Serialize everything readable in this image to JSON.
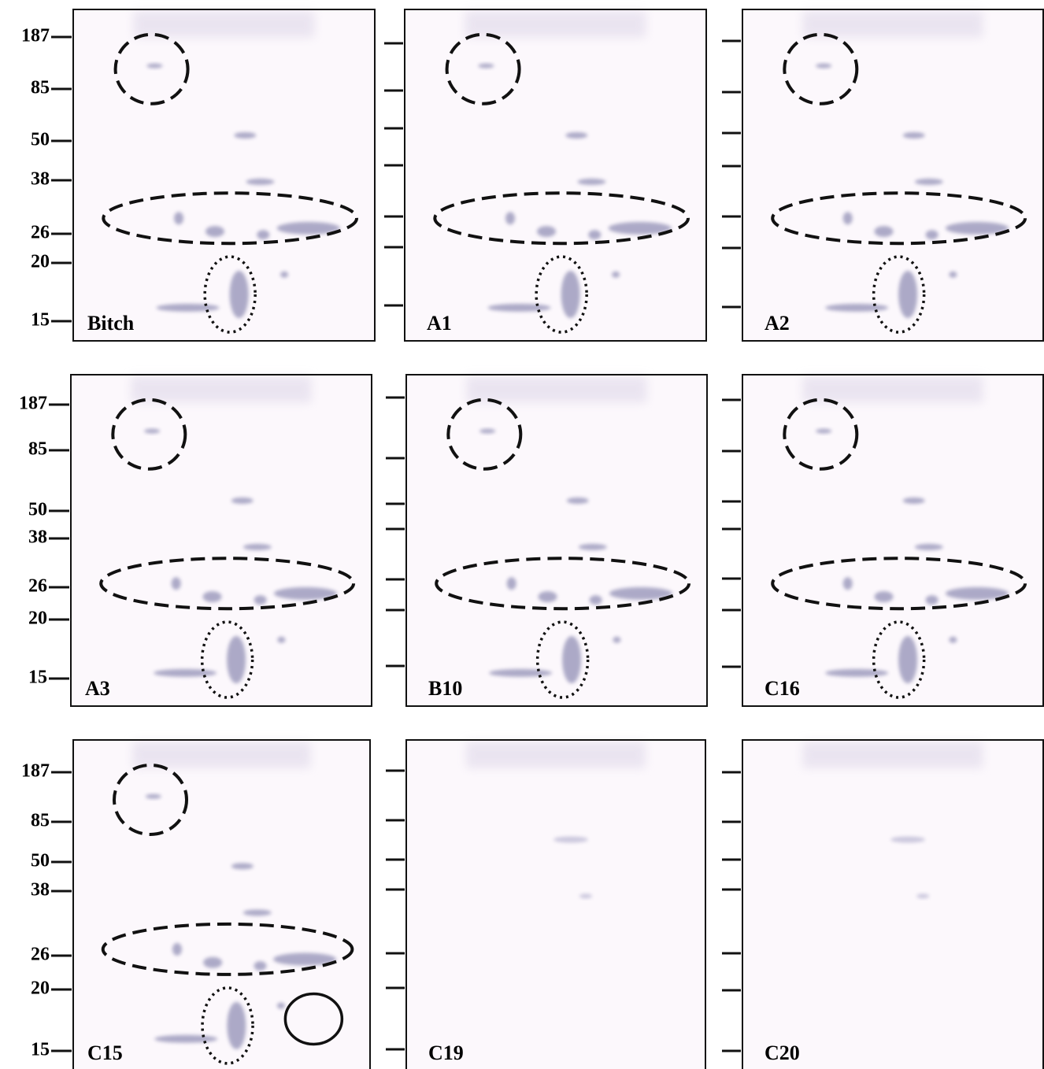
{
  "rows": [
    {
      "markers": [
        187,
        85,
        50,
        38,
        26,
        20,
        15
      ],
      "panels": [
        "Bitch",
        "A1",
        "A2"
      ]
    },
    {
      "markers": [
        187,
        85,
        50,
        38,
        26,
        20,
        15
      ],
      "panels": [
        "A3",
        "B10",
        "C16"
      ]
    },
    {
      "markers": [
        187,
        85,
        50,
        38,
        26,
        20,
        15
      ],
      "panels": [
        "C15",
        "C19",
        "C20"
      ]
    }
  ]
}
